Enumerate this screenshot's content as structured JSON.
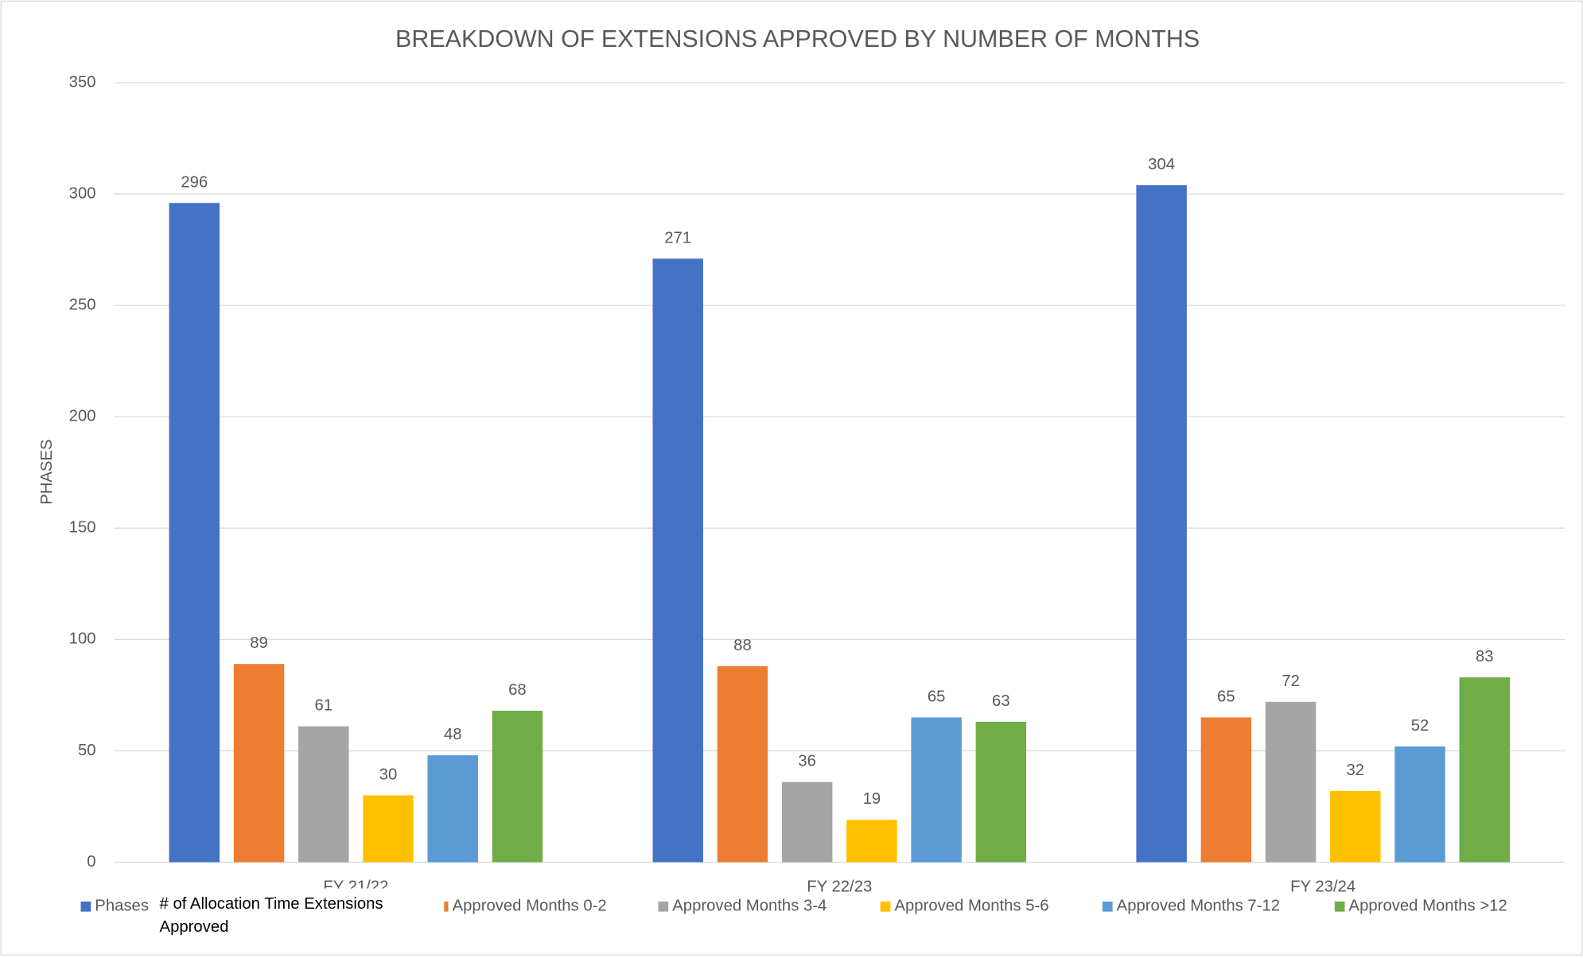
{
  "chart_data": {
    "type": "bar",
    "title": "BREAKDOWN OF EXTENSIONS APPROVED BY NUMBER OF MONTHS",
    "y_label": "PHASES",
    "categories": [
      "FY 21/22",
      "FY 22/23",
      "FY 23/24"
    ],
    "series": [
      {
        "name": "Phases",
        "color": "#4472c4",
        "values": [
          296,
          271,
          304
        ]
      },
      {
        "name": "Approved Months 0-2",
        "color": "#ed7d31",
        "values": [
          89,
          88,
          65
        ]
      },
      {
        "name": "Approved Months 3-4",
        "color": "#a5a5a5",
        "values": [
          61,
          36,
          72
        ]
      },
      {
        "name": "Approved Months 5-6",
        "color": "#ffc000",
        "values": [
          30,
          19,
          32
        ]
      },
      {
        "name": "Approved Months 7-12",
        "color": "#5b9bd5",
        "values": [
          48,
          65,
          52
        ]
      },
      {
        "name": "Approved Months >12",
        "color": "#70ad47",
        "values": [
          68,
          63,
          83
        ]
      }
    ],
    "ylim": [
      0,
      350
    ],
    "yticks": [
      0,
      50,
      100,
      150,
      200,
      250,
      300,
      350
    ],
    "grid": true,
    "legend": "bottom",
    "tooltip": "# of Allocation Time Extensions Approved"
  }
}
